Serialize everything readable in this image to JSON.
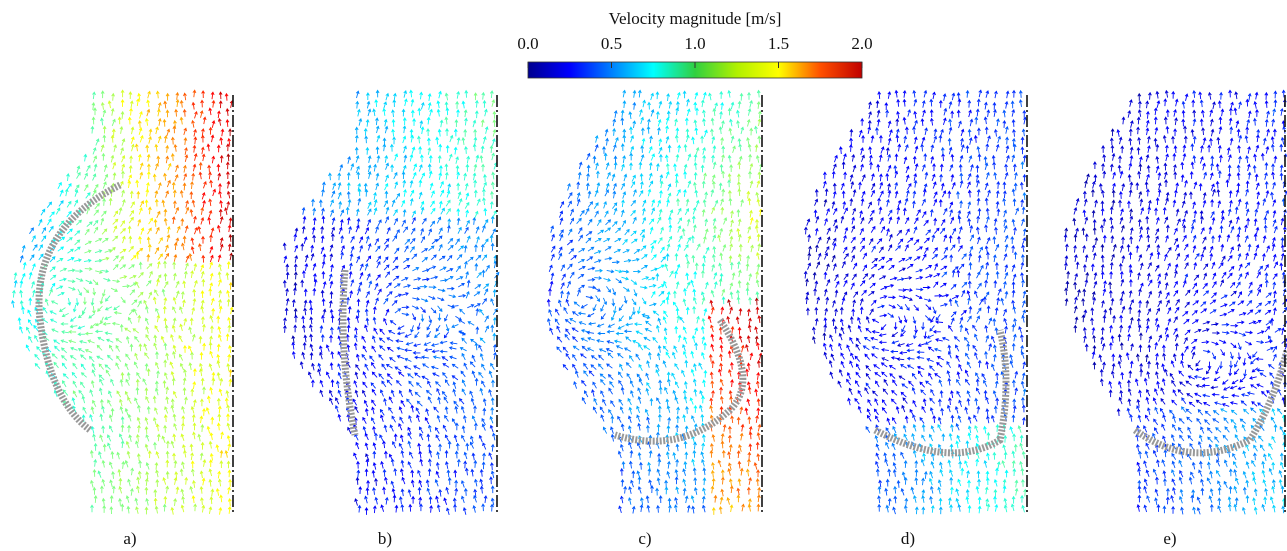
{
  "colorbar": {
    "title": "Velocity magnitude [m/s]",
    "range": [
      0,
      2
    ],
    "ticks": [
      {
        "value": 0,
        "label": "0.0"
      },
      {
        "value": 0.5,
        "label": "0.5"
      },
      {
        "value": 1,
        "label": "1.0"
      },
      {
        "value": 1.5,
        "label": "1.5"
      },
      {
        "value": 2,
        "label": "2.0"
      }
    ]
  },
  "panels": [
    {
      "label": "a)"
    },
    {
      "label": "b)"
    },
    {
      "label": "c)"
    },
    {
      "label": "d)"
    },
    {
      "label": "e)"
    }
  ]
}
